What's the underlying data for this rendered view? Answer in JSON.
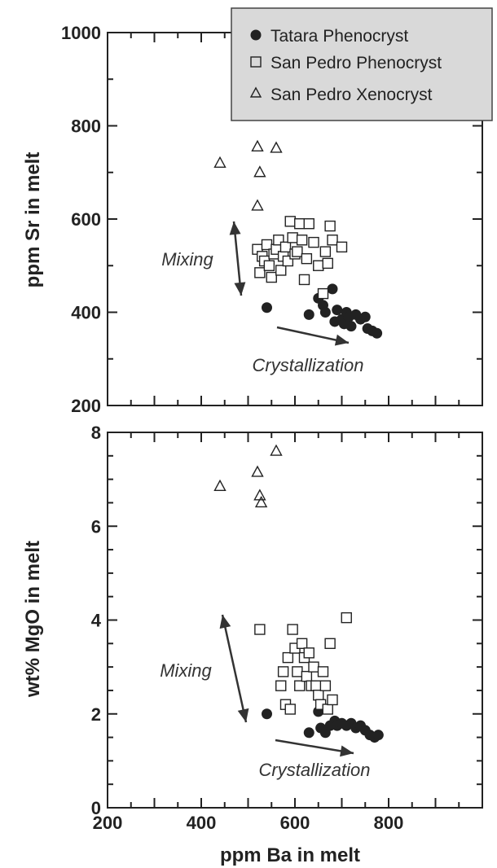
{
  "chart_data": [
    {
      "type": "scatter",
      "title": "",
      "xlabel": "",
      "ylabel": "ppm Sr in melt",
      "xlim": [
        200,
        1000
      ],
      "ylim": [
        200,
        1000
      ],
      "yticks": [
        "200",
        "400",
        "600",
        "800",
        "1000"
      ],
      "legend_position": "top-right",
      "legend": [
        "Tatara Phenocryst",
        "San Pedro Phenocryst",
        "San Pedro Xenocryst"
      ],
      "annotations": {
        "mixing": "Mixing",
        "crystallization": "Crystallization"
      },
      "series": [
        {
          "name": "Tatara Phenocryst",
          "marker": "filled-circle",
          "x": [
            540,
            630,
            650,
            660,
            665,
            680,
            685,
            690,
            700,
            705,
            710,
            715,
            720,
            730,
            740,
            750,
            755,
            765,
            775
          ],
          "y": [
            410,
            395,
            430,
            415,
            400,
            450,
            380,
            405,
            385,
            375,
            400,
            390,
            370,
            395,
            385,
            390,
            365,
            360,
            355
          ]
        },
        {
          "name": "San Pedro Phenocryst",
          "marker": "open-square",
          "x": [
            520,
            525,
            530,
            535,
            540,
            545,
            550,
            555,
            560,
            565,
            570,
            575,
            580,
            585,
            590,
            595,
            600,
            605,
            610,
            615,
            620,
            625,
            630,
            640,
            650,
            660,
            665,
            670,
            675,
            680,
            700
          ],
          "y": [
            535,
            485,
            520,
            510,
            545,
            500,
            475,
            525,
            535,
            555,
            490,
            520,
            540,
            510,
            595,
            560,
            525,
            530,
            590,
            555,
            470,
            515,
            590,
            550,
            500,
            440,
            530,
            505,
            585,
            555,
            540
          ]
        },
        {
          "name": "San Pedro Xenocryst",
          "marker": "open-triangle",
          "x": [
            440,
            520,
            525,
            560,
            520
          ],
          "y": [
            720,
            755,
            700,
            752,
            628
          ]
        }
      ]
    },
    {
      "type": "scatter",
      "title": "",
      "xlabel": "ppm Ba in melt",
      "ylabel": "wt% MgO in melt",
      "xlim": [
        200,
        1000
      ],
      "ylim": [
        0,
        8
      ],
      "xticks": [
        "200",
        "400",
        "600",
        "800"
      ],
      "yticks": [
        "0",
        "2",
        "4",
        "6",
        "8"
      ],
      "annotations": {
        "mixing": "Mixing",
        "crystallization": "Crystallization"
      },
      "series": [
        {
          "name": "Tatara Phenocryst",
          "marker": "filled-circle",
          "x": [
            540,
            630,
            650,
            655,
            665,
            675,
            685,
            690,
            700,
            710,
            720,
            730,
            740,
            750,
            760,
            770,
            778
          ],
          "y": [
            2.0,
            1.6,
            2.05,
            1.7,
            1.6,
            1.75,
            1.85,
            1.75,
            1.8,
            1.75,
            1.8,
            1.7,
            1.75,
            1.65,
            1.55,
            1.5,
            1.55
          ]
        },
        {
          "name": "San Pedro Phenocryst",
          "marker": "open-square",
          "x": [
            525,
            570,
            575,
            580,
            585,
            590,
            595,
            600,
            605,
            610,
            615,
            620,
            625,
            630,
            635,
            640,
            645,
            650,
            655,
            660,
            665,
            670,
            675,
            680,
            710
          ],
          "y": [
            3.8,
            2.6,
            2.9,
            2.2,
            3.2,
            2.1,
            3.8,
            3.4,
            2.9,
            2.6,
            3.5,
            3.2,
            2.8,
            3.3,
            2.6,
            3.0,
            2.6,
            2.4,
            2.2,
            2.9,
            2.6,
            2.1,
            3.5,
            2.3,
            4.05
          ]
        },
        {
          "name": "San Pedro Xenocryst",
          "marker": "open-triangle",
          "x": [
            440,
            520,
            525,
            528,
            560
          ],
          "y": [
            6.85,
            7.15,
            6.65,
            6.5,
            7.6
          ]
        }
      ]
    }
  ]
}
